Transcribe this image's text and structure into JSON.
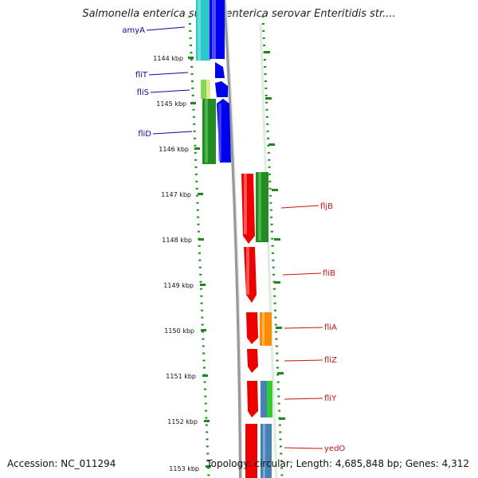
{
  "title": "Salmonella enterica subsp. enterica serovar Enteritidis str....",
  "footer": {
    "accession": "Accession: NC_011294",
    "summary": "Topology: circular; Length: 4,685,848 bp; Genes: 4,312"
  },
  "colors": {
    "red": "#ee0000",
    "blue": "#0000ee",
    "green": "#228b22",
    "cyan": "#2ac8c8",
    "orange": "#ff8c00",
    "steelblue": "#4682b4",
    "lime": "#33cc33",
    "lightyellow": "#e6e68c",
    "tick": "#1b8a1b",
    "label_left": "#0a0aa0",
    "label_right": "#cc1111"
  },
  "kbp_ticks": [
    "1144 kbp",
    "1145 kbp",
    "1146 kbp",
    "1147 kbp",
    "1148 kbp",
    "1149 kbp",
    "1150 kbp",
    "1151 kbp",
    "1152 kbp",
    "1153 kbp"
  ],
  "genes_left": [
    {
      "name": "amyA"
    },
    {
      "name": "fliT"
    },
    {
      "name": "fliS"
    },
    {
      "name": "fliD"
    }
  ],
  "genes_right": [
    {
      "name": "fljB"
    },
    {
      "name": "fliB"
    },
    {
      "name": "fliA"
    },
    {
      "name": "fliZ"
    },
    {
      "name": "fliY"
    },
    {
      "name": "yedO"
    }
  ]
}
